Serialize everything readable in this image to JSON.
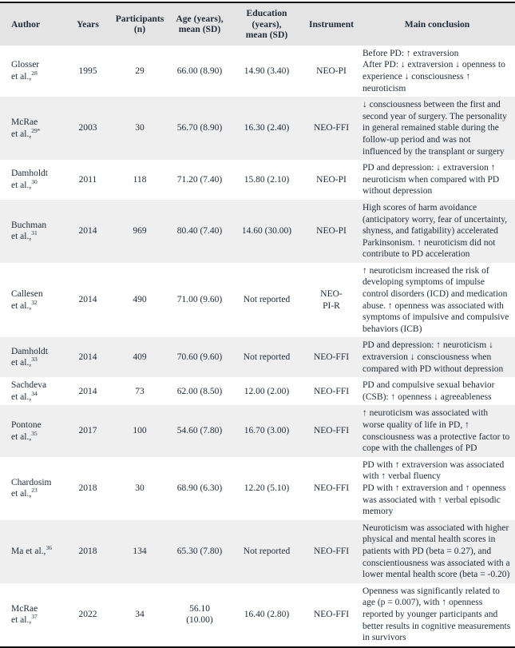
{
  "table": {
    "headers": [
      "Author",
      "Years",
      "Participants\n(n)",
      "Age (years),\nmean (SD)",
      "Education (years),\nmean (SD)",
      "Instrument",
      "Main conclusion"
    ],
    "rows": [
      {
        "author_name": "Glosser\net al.,",
        "ref": "28",
        "years": "1995",
        "participants": "29",
        "age": "66.00 (8.90)",
        "education": "14.90 (3.40)",
        "instrument": "NEO-PI",
        "conclusion": "Before PD: ↑ extraversion\nAfter PD: ↓ extraversion ↓ openness to experience ↓ consciousness ↑ neuroticism",
        "shaded": false
      },
      {
        "author_name": "McRae\net al.,",
        "ref": "29*",
        "years": "2003",
        "participants": "30",
        "age": "56.70 (8.90)",
        "education": "16.30 (2.40)",
        "instrument": "NEO-FFI",
        "conclusion": "↓ consciousness between the first and second year of surgery. The personality in general remained stable during the follow-up period and was not influenced by the transplant or surgery",
        "shaded": true
      },
      {
        "author_name": "Damholdt\net al.,",
        "ref": "30",
        "years": "2011",
        "participants": "118",
        "age": "71.20 (7.40)",
        "education": "15.80 (2.10)",
        "instrument": "NEO-PI",
        "conclusion": "PD and depression: ↓ extraversion ↑ neuroticism when compared with PD without depression",
        "shaded": false
      },
      {
        "author_name": "Buchman\net al.,",
        "ref": "31",
        "years": "2014",
        "participants": "969",
        "age": "80.40 (7.40)",
        "education": "14.60 (30.00)",
        "instrument": "NEO-PI",
        "conclusion": "High scores of harm avoidance (anticipatory worry, fear of uncertainty, shyness, and fatigability) accelerated Parkinsonism. ↑ neuroticism did not contribute to PD acceleration",
        "shaded": true
      },
      {
        "author_name": "Callesen\net al.,",
        "ref": "32",
        "years": "2014",
        "participants": "490",
        "age": "71.00 (9.60)",
        "education": "Not reported",
        "instrument": "NEO-\nPI-R",
        "conclusion": "↑ neuroticism increased the risk of developing symptoms of impulse control disorders (ICD) and medication abuse. ↑ openness was associated with symptoms of impulsive and compulsive behaviors (ICB)",
        "shaded": false
      },
      {
        "author_name": "Damholdt\net al.,",
        "ref": "33",
        "years": "2014",
        "participants": "409",
        "age": "70.60 (9.60)",
        "education": "Not reported",
        "instrument": "NEO-FFI",
        "conclusion": "PD and depression: ↑ neuroticism ↓ extraversion ↓ consciousness when compared with PD without depression",
        "shaded": true
      },
      {
        "author_name": "Sachdeva\net al.,",
        "ref": "34",
        "years": "2014",
        "participants": "73",
        "age": "62.00 (8.50)",
        "education": "12.00 (2.00)",
        "instrument": "NEO-FFI",
        "conclusion": "PD and compulsive sexual behavior (CSB): ↑ openness ↓ agreeableness",
        "shaded": false
      },
      {
        "author_name": "Pontone\net al.,",
        "ref": "35",
        "years": "2017",
        "participants": "100",
        "age": "54.60 (7.80)",
        "education": "16.70 (3.00)",
        "instrument": "NEO-FFI",
        "conclusion": "↑ neuroticism was associated with worse quality of life in PD, ↑ consciousness was a protective factor to cope with the challenges of PD",
        "shaded": true
      },
      {
        "author_name": "Chardosim\net al.,",
        "ref": "23",
        "years": "2018",
        "participants": "30",
        "age": "68.90 (6.30)",
        "education": "12.20 (5.10)",
        "instrument": "NEO-FFI",
        "conclusion": "PD with ↑ extraversion was associated with ↑ verbal fluency\nPD with ↑ extraversion and ↑ openness was associated with ↑ verbal episodic memory",
        "shaded": false
      },
      {
        "author_name": "Ma et al.,",
        "ref": "36",
        "years": "2018",
        "participants": "134",
        "age": "65.30 (7.80)",
        "education": "Not reported",
        "instrument": "NEO-FFI",
        "conclusion": "Neuroticism was associated with higher physical and mental health scores in patients with PD (beta = 0.27), and conscientiousness was associated with a lower mental health score (beta = -0.20)",
        "shaded": true
      },
      {
        "author_name": "McRae\net al.,",
        "ref": "37",
        "years": "2022",
        "participants": "34",
        "age": "56.10\n(10.00)",
        "education": "16.40 (2.80)",
        "instrument": "NEO-FFI",
        "conclusion": "Openness was significantly related to age (p = 0.007), with ↑ openness reported by younger participants and better results in cognitive measurements in survivors",
        "shaded": false
      }
    ]
  }
}
